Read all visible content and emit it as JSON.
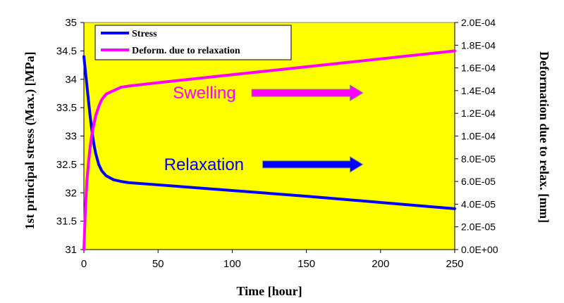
{
  "chart_data": {
    "type": "line",
    "xlabel": "Time [hour]",
    "ylabel_left": "1st principal stress (Max.) [MPa]",
    "ylabel_right": "Deformation due to relax. [mm]",
    "xlim": [
      0,
      250
    ],
    "ylim_left": [
      31,
      35
    ],
    "ylim_right": [
      0,
      0.0002
    ],
    "x_ticks": [
      "0",
      "50",
      "100",
      "150",
      "200",
      "250"
    ],
    "y_left_ticks": [
      "31",
      "31.5",
      "32",
      "32.5",
      "33",
      "33.5",
      "34",
      "34.5",
      "35"
    ],
    "y_right_ticks": [
      "0.0E+00",
      "2.0E-05",
      "4.0E-05",
      "6.0E-05",
      "8.0E-05",
      "1.0E-04",
      "1.2E-04",
      "1.4E-04",
      "1.6E-04",
      "1.8E-04",
      "2.0E-04"
    ],
    "grid": false,
    "plot_background": "#ffff00",
    "legend_placement": "top-left",
    "series": [
      {
        "name": "Stress",
        "axis": "left",
        "color": "#0000ff",
        "points": [
          [
            0,
            34.4
          ],
          [
            1,
            34.15
          ],
          [
            2,
            33.9
          ],
          [
            3,
            33.65
          ],
          [
            4,
            33.4
          ],
          [
            5,
            33.18
          ],
          [
            6,
            32.98
          ],
          [
            7,
            32.82
          ],
          [
            8,
            32.69
          ],
          [
            10,
            32.5
          ],
          [
            12,
            32.39
          ],
          [
            15,
            32.3
          ],
          [
            20,
            32.23
          ],
          [
            25,
            32.2
          ],
          [
            30,
            32.18
          ],
          [
            50,
            32.14
          ],
          [
            100,
            32.04
          ],
          [
            150,
            31.94
          ],
          [
            200,
            31.83
          ],
          [
            250,
            31.72
          ]
        ]
      },
      {
        "name": "Deform. due to relaxation",
        "axis": "right",
        "color": "#ff00ff",
        "points": [
          [
            0,
            0
          ],
          [
            1,
            3.5e-05
          ],
          [
            2,
            6e-05
          ],
          [
            3,
            7.5e-05
          ],
          [
            4,
            8.8e-05
          ],
          [
            5,
            9.8e-05
          ],
          [
            6,
            0.000106
          ],
          [
            8,
            0.000118
          ],
          [
            10,
            0.000126
          ],
          [
            12,
            0.000132
          ],
          [
            15,
            0.000137
          ],
          [
            20,
            0.00014
          ],
          [
            25,
            0.000143
          ],
          [
            30,
            0.000144
          ],
          [
            50,
            0.000147
          ],
          [
            100,
            0.000154
          ],
          [
            150,
            0.000161
          ],
          [
            200,
            0.000168
          ],
          [
            250,
            0.000175
          ]
        ]
      }
    ],
    "annotations": [
      {
        "text": "Swelling",
        "color": "#ff00ff",
        "at": [
          60,
          0.000138
        ],
        "arrow_to": [
          188,
          0.000138
        ]
      },
      {
        "text": "Relaxation",
        "color": "#0000ff",
        "at": [
          54,
          32.5
        ],
        "arrow_to": [
          188,
          32.5
        ]
      }
    ]
  }
}
